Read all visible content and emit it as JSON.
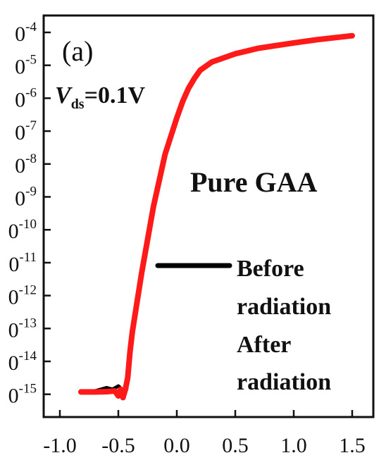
{
  "chart_data": {
    "type": "line",
    "panel_label": "(a)",
    "annotation": {
      "vds_symbol": "V",
      "vds_subscript": "ds",
      "vds_value": "=0.1V"
    },
    "title": "Pure GAA",
    "xlabel": "",
    "ylabel": "",
    "y_scale": "log",
    "xlim": [
      -1.0,
      1.6
    ],
    "x_ticks": [
      -1.0,
      -0.5,
      0.0,
      0.5,
      1.0,
      1.5
    ],
    "x_tick_labels": [
      "-1.0",
      "-0.5",
      "0.0",
      "0.5",
      "1.0",
      "1.5"
    ],
    "ylim_exponent": [
      -15.6,
      -3.7
    ],
    "y_tick_exponents": [
      -4,
      -5,
      -6,
      -7,
      -8,
      -9,
      -10,
      -11,
      -12,
      -13,
      -14,
      -15
    ],
    "y_tick_base": "0",
    "y_tick_exp_labels": [
      "-4",
      "-5",
      "-6",
      "-7",
      "-8",
      "-9",
      "-10",
      "-11",
      "-12",
      "-13",
      "-14",
      "-15"
    ],
    "legend_position": "center-right",
    "series": [
      {
        "name": "Before radiation",
        "color": "#000000",
        "x": [
          -0.82,
          -0.7,
          -0.6,
          -0.55,
          -0.5,
          -0.47,
          -0.45,
          -0.43,
          -0.41,
          -0.38,
          -0.3,
          -0.2,
          -0.1,
          0.0,
          0.05,
          0.1,
          0.15,
          0.2,
          0.3,
          0.5,
          0.7,
          1.0,
          1.2,
          1.5
        ],
        "y_exponent": [
          -14.9,
          -14.9,
          -14.8,
          -14.85,
          -14.75,
          -14.85,
          -14.95,
          -14.85,
          -14.3,
          -13.2,
          -11.3,
          -9.3,
          -7.7,
          -6.6,
          -6.1,
          -5.7,
          -5.4,
          -5.15,
          -4.9,
          -4.65,
          -4.48,
          -4.32,
          -4.22,
          -4.1
        ]
      },
      {
        "name": "After radiation",
        "color": "#ff1a1a",
        "x": [
          -0.82,
          -0.7,
          -0.6,
          -0.53,
          -0.5,
          -0.48,
          -0.46,
          -0.44,
          -0.42,
          -0.4,
          -0.38,
          -0.3,
          -0.2,
          -0.1,
          0.0,
          0.05,
          0.1,
          0.15,
          0.2,
          0.3,
          0.5,
          0.7,
          1.0,
          1.2,
          1.5
        ],
        "y_exponent": [
          -14.93,
          -14.93,
          -14.92,
          -14.9,
          -15.05,
          -14.85,
          -15.1,
          -14.85,
          -14.5,
          -13.7,
          -13.1,
          -11.3,
          -9.3,
          -7.7,
          -6.6,
          -6.1,
          -5.7,
          -5.4,
          -5.15,
          -4.9,
          -4.65,
          -4.48,
          -4.32,
          -4.22,
          -4.1
        ]
      }
    ],
    "legend": [
      {
        "label_lines": [
          "Before",
          "radiation"
        ],
        "color": "#000000"
      },
      {
        "label_lines": [
          "After",
          "radiation"
        ],
        "color": "#ff1a1a"
      }
    ]
  }
}
